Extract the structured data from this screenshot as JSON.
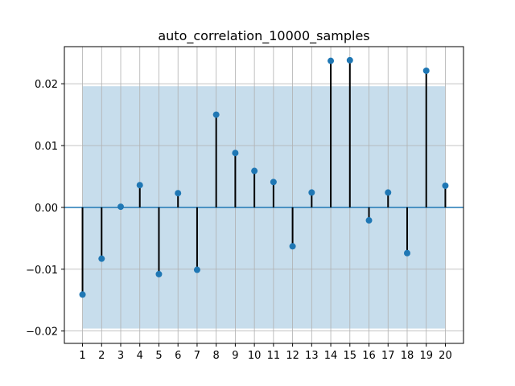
{
  "chart_data": {
    "type": "stem",
    "title": "auto_correlation_10000_samples",
    "xlabel": "",
    "ylabel": "",
    "x": [
      1,
      2,
      3,
      4,
      5,
      6,
      7,
      8,
      9,
      10,
      11,
      12,
      13,
      14,
      15,
      16,
      17,
      18,
      19,
      20
    ],
    "values": [
      -0.0141,
      -0.0083,
      0.0001,
      0.0036,
      -0.0108,
      0.0023,
      -0.0101,
      0.015,
      0.0088,
      0.0059,
      0.0041,
      -0.0063,
      0.0024,
      0.0237,
      0.0238,
      -0.0021,
      0.0024,
      -0.0074,
      0.0221,
      0.0035
    ],
    "confidence_band": [
      -0.0196,
      0.0196
    ],
    "xlim": [
      0.05,
      20.95
    ],
    "ylim": [
      -0.022,
      0.026
    ],
    "xticks": [
      1,
      2,
      3,
      4,
      5,
      6,
      7,
      8,
      9,
      10,
      11,
      12,
      13,
      14,
      15,
      16,
      17,
      18,
      19,
      20
    ],
    "yticks": [
      -0.02,
      -0.01,
      0.0,
      0.01,
      0.02
    ],
    "ytick_labels": [
      "−0.02",
      "−0.01",
      "0.00",
      "0.01",
      "0.02"
    ],
    "grid": true,
    "colors": {
      "marker": "#1f77b4",
      "stem": "#000000",
      "zero_line": "#1f77b4",
      "band": "#1f77b4",
      "grid": "#b0b0b0"
    }
  }
}
